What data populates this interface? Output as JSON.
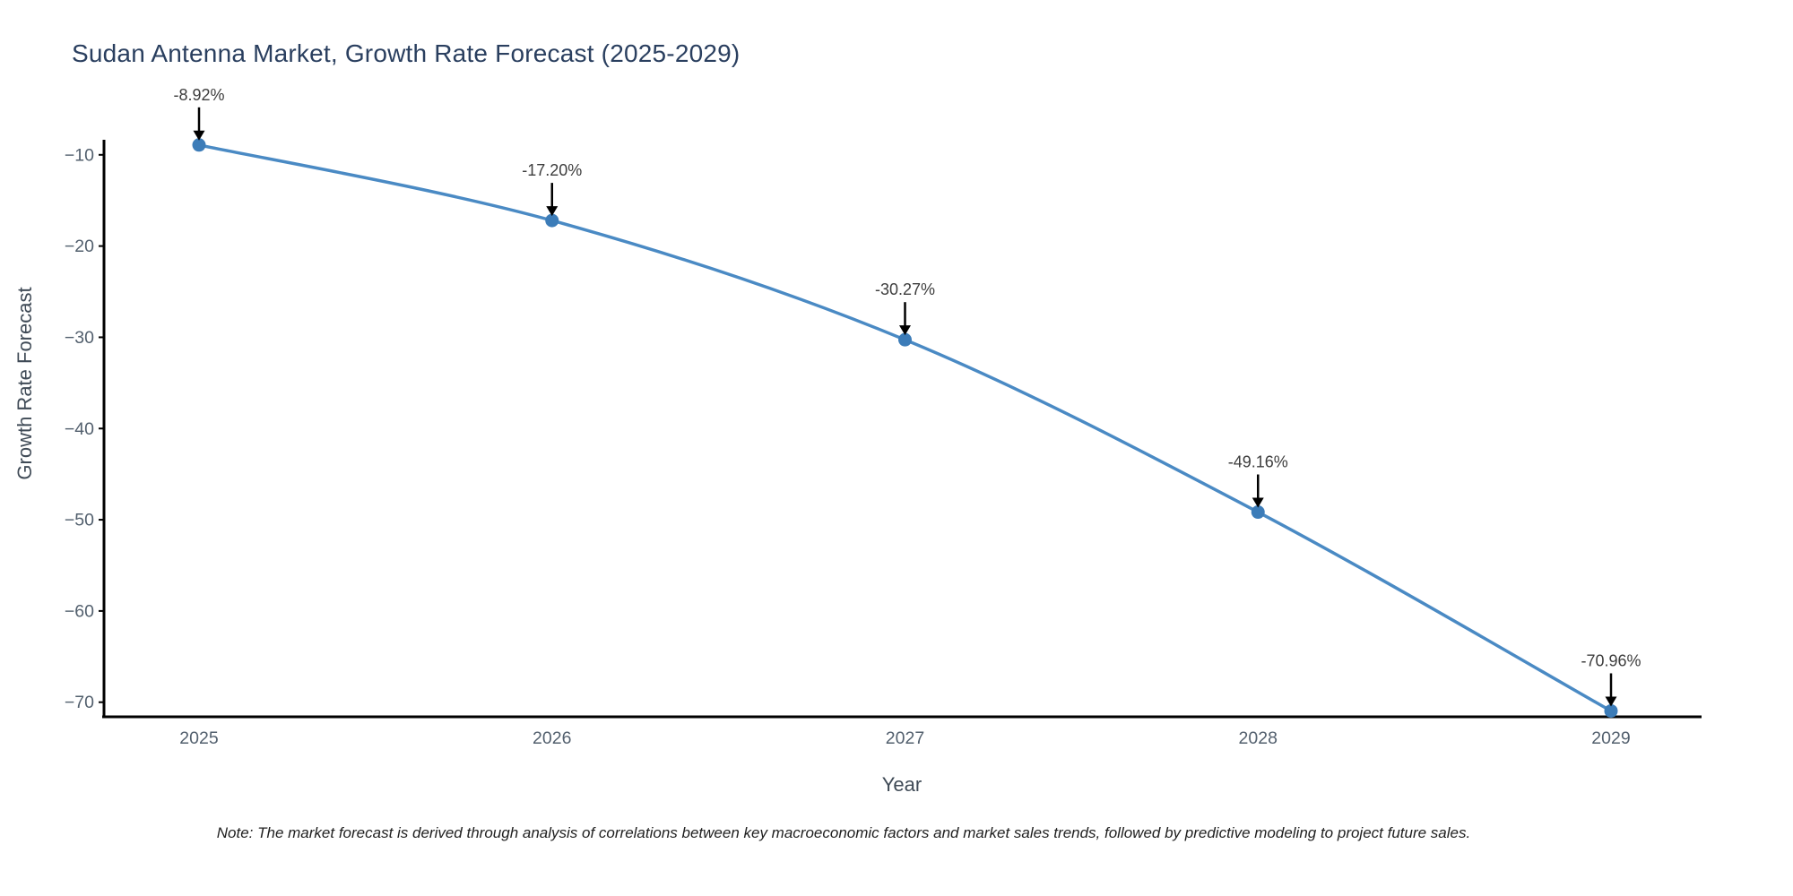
{
  "page": {
    "background": "#ffffff"
  },
  "chart_data": {
    "type": "line",
    "title": "Sudan Antenna Market, Growth Rate Forecast (2025-2029)",
    "xlabel": "Year",
    "ylabel": "Growth Rate Forecast",
    "note": "Note: The market forecast is derived through analysis of correlations between key macroeconomic factors and market sales trends, followed by predictive modeling to project future sales.",
    "x": [
      2025,
      2026,
      2027,
      2028,
      2029
    ],
    "x_labels": [
      "2025",
      "2026",
      "2027",
      "2028",
      "2029"
    ],
    "series": [
      {
        "name": "Growth Rate Forecast",
        "values": [
          -8.92,
          -17.2,
          -30.27,
          -49.16,
          -70.96
        ]
      }
    ],
    "point_labels": [
      "-8.92%",
      "-17.20%",
      "-30.27%",
      "-49.16%",
      "-70.96%"
    ],
    "yticks": [
      -10,
      -20,
      -30,
      -40,
      -50,
      -60,
      -70
    ],
    "ytick_labels": [
      "−10",
      "−20",
      "−30",
      "−40",
      "−50",
      "−60",
      "−70"
    ],
    "ylim": [
      -71.6,
      -8.35
    ],
    "grid": false,
    "legend": "none",
    "marker_size": 15,
    "line_width": 3.5,
    "colors": {
      "line": "#4a8ac4",
      "marker": "#3c7cb8",
      "axis": "#000000",
      "arrow": "#000000",
      "title": "#2a3f5f",
      "tick": "#53606e",
      "axis_title": "#3f4a56",
      "annotation": "#3d3d3d",
      "note": "#1f1f1f"
    }
  }
}
